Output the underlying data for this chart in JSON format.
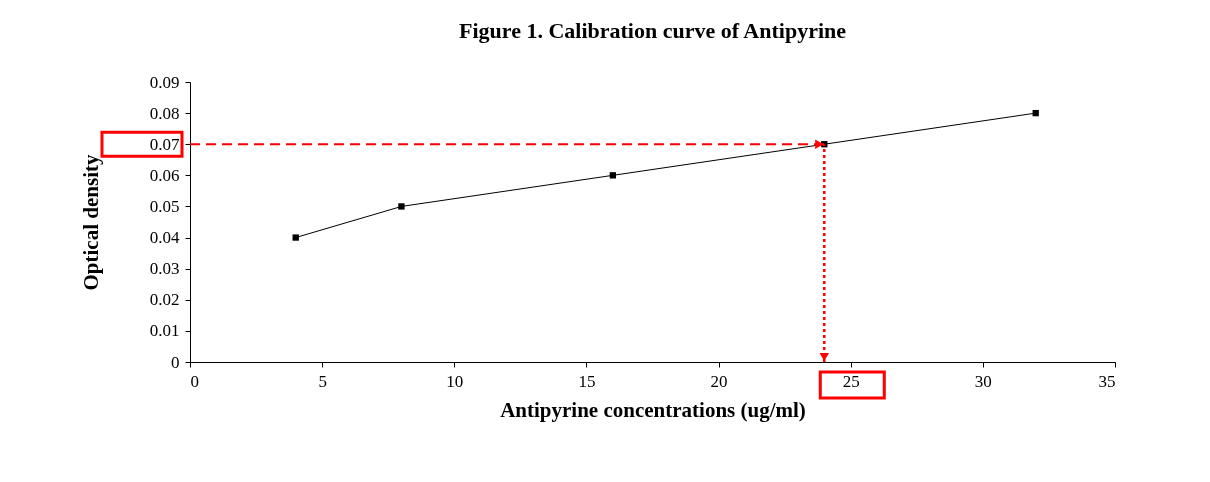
{
  "chart_data": {
    "type": "line",
    "title": "Figure 1.  Calibration curve of Antipyrine",
    "xlabel": "Antipyrine concentrations (ug/ml)",
    "ylabel": "Optical density",
    "x": [
      4,
      8,
      16,
      24,
      32
    ],
    "series": [
      {
        "color": "#000000",
        "values": [
          0.04,
          0.05,
          0.06,
          0.07,
          0.08
        ]
      }
    ],
    "xlim": [
      0,
      35
    ],
    "xticks": [
      0,
      5,
      10,
      15,
      20,
      25,
      30,
      35
    ],
    "ylim": [
      0,
      0.09
    ],
    "yticks": [
      0,
      0.01,
      0.02,
      0.03,
      0.04,
      0.05,
      0.06,
      0.07,
      0.08,
      0.09
    ],
    "ref_lines": [
      {
        "axis": "y",
        "value": 0.07,
        "color": "#ff0000",
        "line_style": "dashed"
      },
      {
        "axis": "x",
        "value": 24,
        "color": "#ff0000",
        "line_style": "dotted"
      }
    ],
    "marker": "square",
    "line_style": "solid"
  }
}
